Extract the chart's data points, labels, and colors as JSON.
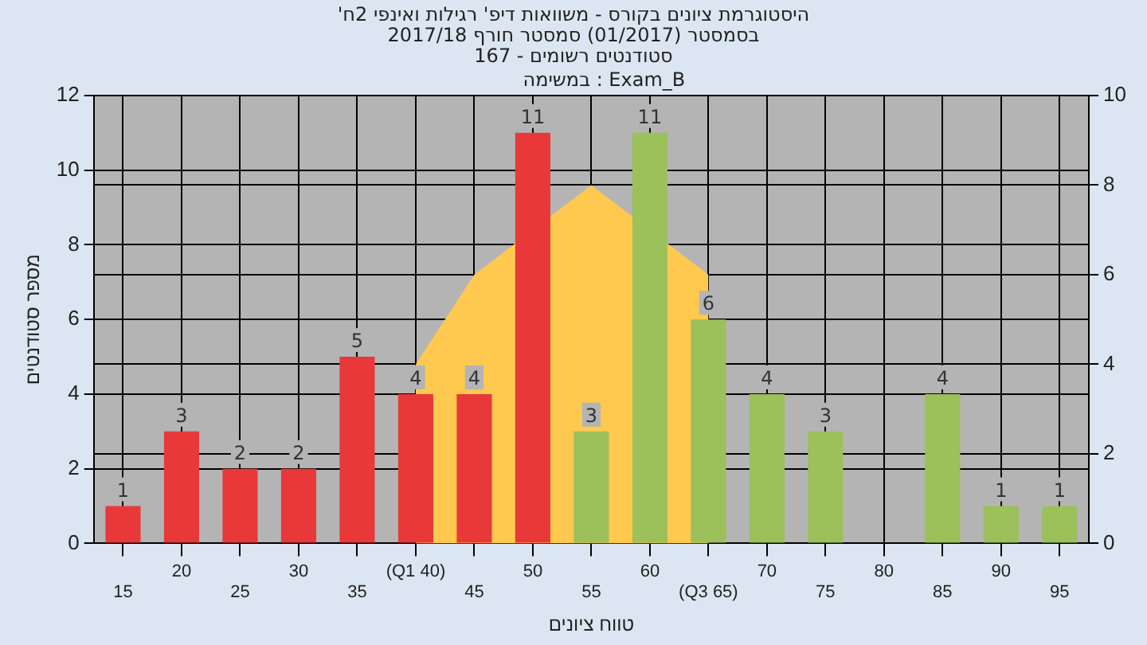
{
  "chart_data": {
    "type": "bar",
    "title": "'היסטוגרמת ציונים בקורס - משוואות דיפ' רגילות ואינפי 2ח",
    "subtitle": "בסמסטר  (01/2017)  סמסטר חורף 2017/18\nסטודנטים רשומים - 167",
    "xlabel": "טווח ציונים",
    "ylabel": "מספר סטודנטים",
    "annotations": [
      "במשימה : Exam_B"
    ],
    "categories": [
      "15",
      "20",
      "25",
      "30",
      "35",
      "(Q1 40)",
      "45",
      "50",
      "55",
      "60",
      "(Q3 65)",
      "70",
      "75",
      "80",
      "85",
      "90",
      "95"
    ],
    "series": [
      {
        "type": "area",
        "axis": "y2",
        "color": "#ffc94f",
        "values": [
          null,
          null,
          null,
          null,
          null,
          4,
          6,
          null,
          8,
          null,
          6,
          null,
          null,
          null,
          null,
          null,
          null
        ]
      },
      {
        "colors": [
          "#e8383a",
          "#e8383a",
          "#e8383a",
          "#e8383a",
          "#e8383a",
          "#e8383a",
          "#e8383a",
          "#e8383a",
          "#9cc05a",
          "#9cc05a",
          "#9cc05a",
          "#9cc05a",
          "#9cc05a",
          "#9cc05a",
          "#9cc05a",
          "#9cc05a",
          "#9cc05a"
        ],
        "values": [
          1,
          3,
          2,
          2,
          5,
          4,
          4,
          11,
          3,
          11,
          6,
          4,
          3,
          null,
          4,
          1,
          1
        ],
        "value_labels": [
          "1",
          "3",
          "2",
          "2",
          "5",
          "4",
          "4",
          "11",
          "3",
          "11",
          "6",
          "4",
          "3",
          null,
          "4",
          "1",
          "1"
        ]
      }
    ],
    "ylim": [
      0,
      12
    ],
    "yticks": [
      0,
      2,
      4,
      6,
      8,
      10,
      12
    ],
    "y2lim": [
      0,
      10
    ],
    "y2ticks": [
      0,
      2,
      4,
      6,
      8,
      10
    ],
    "grid": true,
    "legend": false
  }
}
